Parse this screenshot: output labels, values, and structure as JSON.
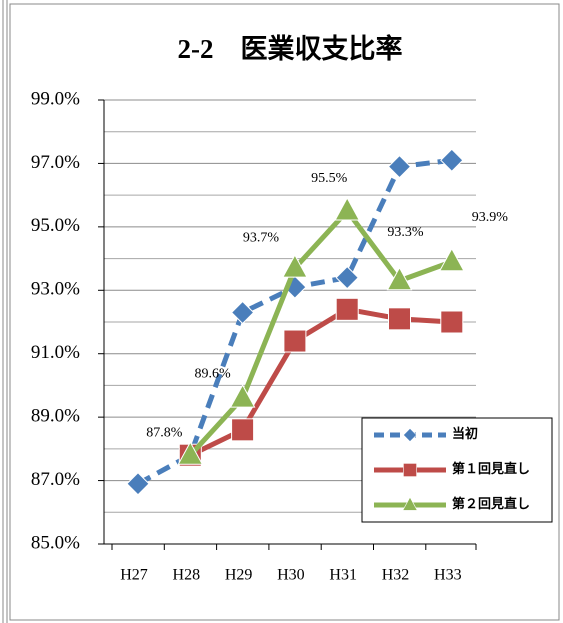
{
  "chart_data": {
    "type": "line",
    "title": "2-2　医業収支比率",
    "categories": [
      "H27",
      "H28",
      "H29",
      "H30",
      "H31",
      "H32",
      "H33"
    ],
    "ylim": [
      85,
      99
    ],
    "yticks": [
      {
        "value": 85,
        "label": "85.0%"
      },
      {
        "value": 87,
        "label": "87.0%"
      },
      {
        "value": 89,
        "label": "89.0%"
      },
      {
        "value": 91,
        "label": "91.0%"
      },
      {
        "value": 93,
        "label": "93.0%"
      },
      {
        "value": 95,
        "label": "95.0%"
      },
      {
        "value": 97,
        "label": "97.0%"
      },
      {
        "value": 99,
        "label": "99.0%"
      }
    ],
    "minor_yticks": [
      86,
      88,
      90,
      92,
      94,
      96,
      98
    ],
    "grid": true,
    "legend": "lower right",
    "series": [
      {
        "name": "当初",
        "color": "#4a7ebb",
        "dash": true,
        "marker": "diamond",
        "values": [
          86.9,
          87.8,
          92.3,
          93.1,
          93.4,
          96.9,
          97.1
        ]
      },
      {
        "name": "第１回見直し",
        "color": "#be4b48",
        "dash": false,
        "marker": "square",
        "values": [
          null,
          87.8,
          88.6,
          91.4,
          92.4,
          92.1,
          92.0
        ]
      },
      {
        "name": "第２回見直し",
        "color": "#8cb454",
        "dash": false,
        "marker": "triangle",
        "values": [
          null,
          87.8,
          89.6,
          93.7,
          95.5,
          93.3,
          93.9
        ],
        "value_labels": [
          null,
          "87.8%",
          "89.6%",
          "93.7%",
          "95.5%",
          "93.3%",
          "93.9%"
        ]
      }
    ]
  }
}
